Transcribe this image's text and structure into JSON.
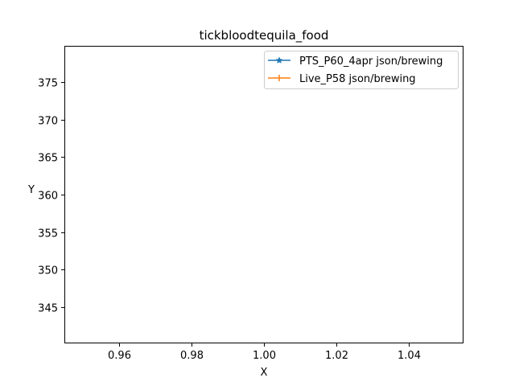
{
  "chart_data": {
    "type": "line",
    "title": "tickbloodtequila_food",
    "xlabel": "X",
    "ylabel": "Y",
    "xlim": [
      0.945,
      1.055
    ],
    "ylim": [
      340.2,
      379.8
    ],
    "xticks": [
      0.96,
      0.98,
      1.0,
      1.02,
      1.04
    ],
    "xtick_labels": [
      "0.96",
      "0.98",
      "1.00",
      "1.02",
      "1.04"
    ],
    "yticks": [
      345,
      350,
      355,
      360,
      365,
      370,
      375
    ],
    "ytick_labels": [
      "345",
      "350",
      "355",
      "360",
      "365",
      "370",
      "375"
    ],
    "grid": false,
    "legend_position": "top-right",
    "series": [
      {
        "name": "PTS_P60_4apr json/brewing",
        "color": "#1f77b4",
        "marker": "star",
        "x": [],
        "y": []
      },
      {
        "name": "Live_P58 json/brewing",
        "color": "#ff7f0e",
        "marker": "plus",
        "x": [],
        "y": []
      }
    ]
  }
}
